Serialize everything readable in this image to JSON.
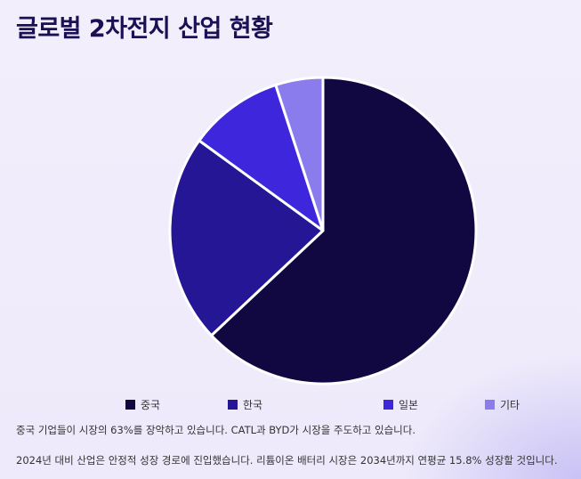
{
  "title": "글로벌 2차전지 산업 현황",
  "chart_data": {
    "type": "pie",
    "categories": [
      "중국",
      "한국",
      "일본",
      "기타"
    ],
    "values": [
      63,
      22,
      10,
      5
    ],
    "colors": [
      "#110842",
      "#241694",
      "#3e26dc",
      "#8b7cee"
    ],
    "legend_position": "bottom"
  },
  "notes": [
    "중국 기업들이 시장의 63%를 장악하고 있습니다. CATL과 BYD가 시장을 주도하고 있습니다.",
    "2024년 대비 산업은 안정적 성장 경로에 진입했습니다. 리튬이온 배터리 시장은 2034년까지 연평균 15.8% 성장할 것입니다."
  ]
}
